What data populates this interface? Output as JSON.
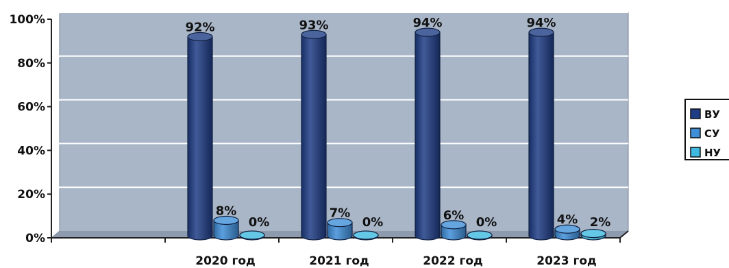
{
  "chart_data": {
    "type": "bar",
    "categories": [
      "",
      "2020 год",
      "2021 год",
      "2022 год",
      "2023 год"
    ],
    "series": [
      {
        "name": "ВУ",
        "values": [
          null,
          92,
          93,
          94,
          94
        ],
        "labels": [
          "",
          "92%",
          "93%",
          "94%",
          "94%"
        ],
        "color": "#1f3d86"
      },
      {
        "name": "СУ",
        "values": [
          null,
          8,
          7,
          6,
          4
        ],
        "labels": [
          "",
          "8%",
          "7%",
          "6%",
          "4%"
        ],
        "color": "#3f8ed8"
      },
      {
        "name": "НУ",
        "values": [
          null,
          0,
          0,
          0,
          2
        ],
        "labels": [
          "",
          "0%",
          "0%",
          "0%",
          "2%"
        ],
        "color": "#3fb9e0"
      }
    ],
    "yticks": [
      "0%",
      "20%",
      "40%",
      "60%",
      "80%",
      "100%"
    ],
    "ylim": [
      0,
      100
    ],
    "grid": true,
    "legend": "right",
    "plot_background": "#a9b6c8"
  }
}
